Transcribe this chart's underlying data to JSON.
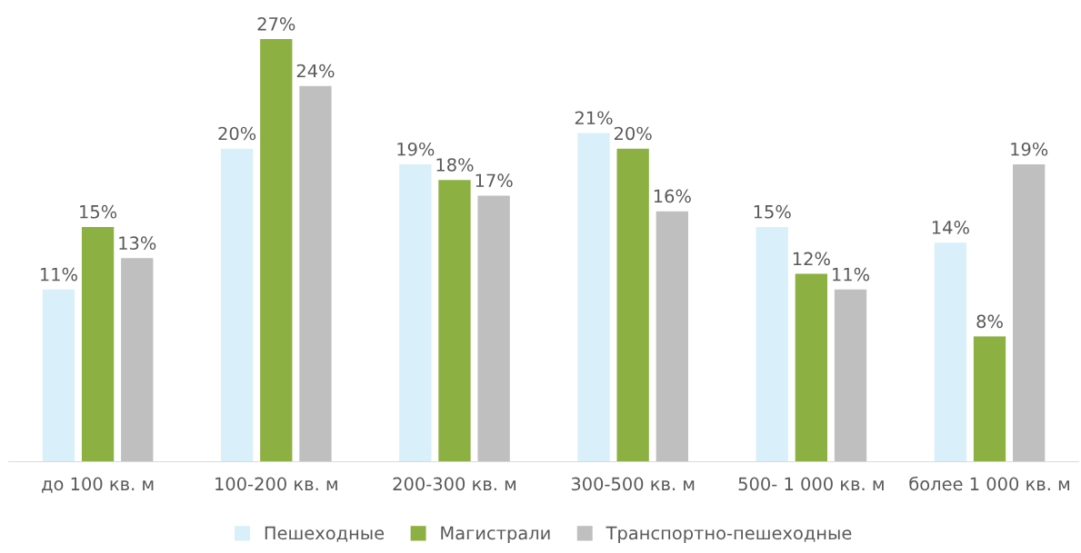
{
  "chart_data": {
    "type": "bar",
    "categories": [
      "до 100 кв. м",
      "100-200 кв. м",
      "200-300 кв. м",
      "300-500 кв. м",
      "500- 1 000 кв. м",
      "более 1 000 кв. м"
    ],
    "series": [
      {
        "name": "Пешеходные",
        "color": "#d9eff9",
        "values": [
          11,
          20,
          19,
          21,
          15,
          14
        ],
        "value_labels": [
          "11%",
          "20%",
          "19%",
          "21%",
          "15%",
          "14%"
        ]
      },
      {
        "name": "Магистрали",
        "color": "#8db043",
        "values": [
          15,
          27,
          18,
          20,
          12,
          8
        ],
        "value_labels": [
          "15%",
          "27%",
          "18%",
          "20%",
          "12%",
          "8%"
        ]
      },
      {
        "name": "Транспортно-пешеходные",
        "color": "#bfbfbf",
        "values": [
          13,
          24,
          17,
          16,
          11,
          19
        ],
        "value_labels": [
          "13%",
          "24%",
          "17%",
          "16%",
          "11%",
          "19%"
        ]
      }
    ],
    "tick_labels": "x",
    "grid": false,
    "legend": "bottom"
  }
}
